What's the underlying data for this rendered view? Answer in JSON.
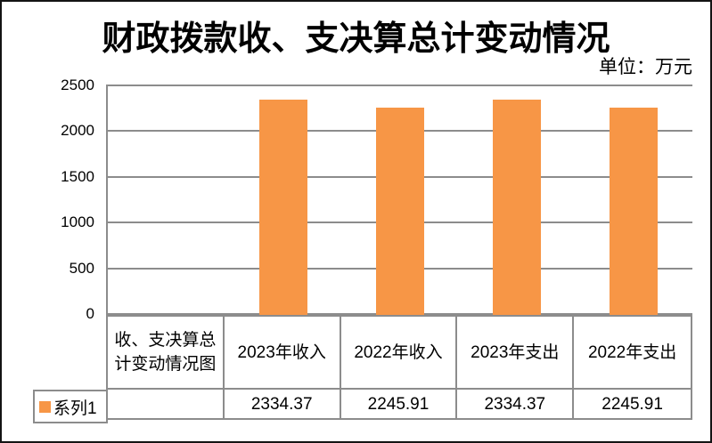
{
  "title": "财政拨款收、支决算总计变动情况",
  "unit_label": "单位：万元",
  "legend": {
    "series_label": "系列1",
    "marker_color": "#F79646"
  },
  "y_axis": {
    "ticks": [
      "2500",
      "2000",
      "1500",
      "1000",
      "500",
      "0"
    ],
    "min": 0,
    "max": 2500,
    "step": 500
  },
  "chart_data": {
    "type": "bar",
    "title": "财政拨款收、支决算总计变动情况",
    "subtitle": "单位：万元",
    "categories": [
      "收、支决算总计变动情况图",
      "2023年收入",
      "2022年收入",
      "2023年支出",
      "2022年支出"
    ],
    "series": [
      {
        "name": "系列1",
        "values": [
          null,
          2334.37,
          2245.91,
          2334.37,
          2245.91
        ],
        "color": "#F79646"
      }
    ],
    "xlabel": "",
    "ylabel": "",
    "ylim": [
      0,
      2500
    ],
    "y_step": 500,
    "grid": true,
    "legend_position": "bottom-left-table",
    "data_table_shown": true
  },
  "table": {
    "headers": [
      "收、支决算总计变动情况图",
      "2023年收入",
      "2022年收入",
      "2023年支出",
      "2022年支出"
    ],
    "row_label": "系列1",
    "values_display": [
      "",
      "2334.37",
      "2245.91",
      "2334.37",
      "2245.91"
    ]
  },
  "colors": {
    "bar": "#F79646",
    "gridline": "#8C8C8C",
    "frame_border": "#141414",
    "text": "#000000",
    "background": "#FFFFFF"
  }
}
